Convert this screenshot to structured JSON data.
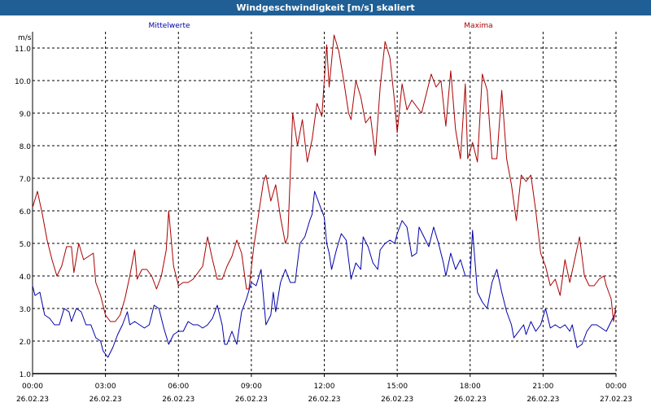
{
  "window": {
    "title": "Windgeschwindigkeit [m/s] skaliert"
  },
  "chart_data": {
    "type": "line",
    "title": "Windgeschwindigkeit [m/s] skaliert",
    "ylabel": "m/s",
    "ylim": [
      1.0,
      11.5
    ],
    "yticks": [
      "1.0",
      "2.0",
      "3.0",
      "4.0",
      "5.0",
      "6.0",
      "7.0",
      "8.0",
      "9.0",
      "10.0",
      "11.0"
    ],
    "xlim": [
      0,
      24
    ],
    "xticks": [
      {
        "time": "00:00",
        "date": "26.02.23"
      },
      {
        "time": "03:00",
        "date": "26.02.23"
      },
      {
        "time": "06:00",
        "date": "26.02.23"
      },
      {
        "time": "09:00",
        "date": "26.02.23"
      },
      {
        "time": "12:00",
        "date": "26.02.23"
      },
      {
        "time": "15:00",
        "date": "26.02.23"
      },
      {
        "time": "18:00",
        "date": "26.02.23"
      },
      {
        "time": "21:00",
        "date": "26.02.23"
      },
      {
        "time": "00:00",
        "date": "27.02.23"
      }
    ],
    "grid": true,
    "colors": {
      "mittel": "#0000aa",
      "maxima": "#aa0000",
      "grid": "#000000",
      "titlebar": "#1f5f95"
    },
    "series": [
      {
        "name": "Mittelwerte",
        "values": [
          [
            0.0,
            3.7
          ],
          [
            0.1,
            3.4
          ],
          [
            0.3,
            3.5
          ],
          [
            0.5,
            2.8
          ],
          [
            0.7,
            2.7
          ],
          [
            0.9,
            2.5
          ],
          [
            1.1,
            2.5
          ],
          [
            1.3,
            3.0
          ],
          [
            1.5,
            2.9
          ],
          [
            1.6,
            2.6
          ],
          [
            1.8,
            3.0
          ],
          [
            2.0,
            2.9
          ],
          [
            2.2,
            2.5
          ],
          [
            2.4,
            2.5
          ],
          [
            2.6,
            2.1
          ],
          [
            2.8,
            2.0
          ],
          [
            2.9,
            1.7
          ],
          [
            3.1,
            1.5
          ],
          [
            3.3,
            1.8
          ],
          [
            3.5,
            2.2
          ],
          [
            3.7,
            2.5
          ],
          [
            3.9,
            2.9
          ],
          [
            4.0,
            2.5
          ],
          [
            4.2,
            2.6
          ],
          [
            4.4,
            2.5
          ],
          [
            4.6,
            2.4
          ],
          [
            4.8,
            2.5
          ],
          [
            5.0,
            3.1
          ],
          [
            5.2,
            3.0
          ],
          [
            5.4,
            2.4
          ],
          [
            5.6,
            1.9
          ],
          [
            5.8,
            2.2
          ],
          [
            6.0,
            2.3
          ],
          [
            6.2,
            2.3
          ],
          [
            6.4,
            2.6
          ],
          [
            6.6,
            2.5
          ],
          [
            6.8,
            2.5
          ],
          [
            7.0,
            2.4
          ],
          [
            7.2,
            2.5
          ],
          [
            7.4,
            2.7
          ],
          [
            7.6,
            3.1
          ],
          [
            7.8,
            2.5
          ],
          [
            7.9,
            1.9
          ],
          [
            8.0,
            1.9
          ],
          [
            8.2,
            2.3
          ],
          [
            8.4,
            1.9
          ],
          [
            8.6,
            2.9
          ],
          [
            8.8,
            3.3
          ],
          [
            9.0,
            3.8
          ],
          [
            9.2,
            3.7
          ],
          [
            9.4,
            4.2
          ],
          [
            9.6,
            2.5
          ],
          [
            9.8,
            2.8
          ],
          [
            9.9,
            3.5
          ],
          [
            10.0,
            2.9
          ],
          [
            10.2,
            3.8
          ],
          [
            10.4,
            4.2
          ],
          [
            10.6,
            3.8
          ],
          [
            10.8,
            3.8
          ],
          [
            10.9,
            4.4
          ],
          [
            11.0,
            5.0
          ],
          [
            11.2,
            5.2
          ],
          [
            11.4,
            5.7
          ],
          [
            11.5,
            5.9
          ],
          [
            11.6,
            6.6
          ],
          [
            11.8,
            6.2
          ],
          [
            12.0,
            5.8
          ],
          [
            12.1,
            5.0
          ],
          [
            12.2,
            4.7
          ],
          [
            12.3,
            4.2
          ],
          [
            12.5,
            4.8
          ],
          [
            12.7,
            5.3
          ],
          [
            12.9,
            5.1
          ],
          [
            13.0,
            4.5
          ],
          [
            13.1,
            3.9
          ],
          [
            13.3,
            4.4
          ],
          [
            13.5,
            4.2
          ],
          [
            13.6,
            5.2
          ],
          [
            13.8,
            4.9
          ],
          [
            14.0,
            4.4
          ],
          [
            14.2,
            4.2
          ],
          [
            14.3,
            4.8
          ],
          [
            14.5,
            5.0
          ],
          [
            14.7,
            5.1
          ],
          [
            14.9,
            5.0
          ],
          [
            15.0,
            5.3
          ],
          [
            15.2,
            5.7
          ],
          [
            15.4,
            5.5
          ],
          [
            15.6,
            4.6
          ],
          [
            15.8,
            4.7
          ],
          [
            15.9,
            5.5
          ],
          [
            16.1,
            5.2
          ],
          [
            16.3,
            4.9
          ],
          [
            16.5,
            5.5
          ],
          [
            16.7,
            5.0
          ],
          [
            16.9,
            4.4
          ],
          [
            17.0,
            4.0
          ],
          [
            17.2,
            4.7
          ],
          [
            17.4,
            4.2
          ],
          [
            17.6,
            4.5
          ],
          [
            17.8,
            4.0
          ],
          [
            18.0,
            4.0
          ],
          [
            18.1,
            5.4
          ],
          [
            18.3,
            3.5
          ],
          [
            18.5,
            3.2
          ],
          [
            18.7,
            3.0
          ],
          [
            18.9,
            3.8
          ],
          [
            19.1,
            4.2
          ],
          [
            19.3,
            3.5
          ],
          [
            19.5,
            2.9
          ],
          [
            19.7,
            2.5
          ],
          [
            19.8,
            2.1
          ],
          [
            20.0,
            2.3
          ],
          [
            20.2,
            2.5
          ],
          [
            20.3,
            2.2
          ],
          [
            20.5,
            2.6
          ],
          [
            20.7,
            2.3
          ],
          [
            20.9,
            2.5
          ],
          [
            21.1,
            3.0
          ],
          [
            21.3,
            2.4
          ],
          [
            21.5,
            2.5
          ],
          [
            21.7,
            2.4
          ],
          [
            21.9,
            2.5
          ],
          [
            22.1,
            2.3
          ],
          [
            22.2,
            2.5
          ],
          [
            22.4,
            1.8
          ],
          [
            22.6,
            1.9
          ],
          [
            22.8,
            2.3
          ],
          [
            23.0,
            2.5
          ],
          [
            23.2,
            2.5
          ],
          [
            23.4,
            2.4
          ],
          [
            23.6,
            2.3
          ],
          [
            23.8,
            2.6
          ],
          [
            24.0,
            2.9
          ]
        ]
      },
      {
        "name": "Maxima",
        "values": [
          [
            0.0,
            6.1
          ],
          [
            0.2,
            6.6
          ],
          [
            0.4,
            5.9
          ],
          [
            0.6,
            5.1
          ],
          [
            0.8,
            4.5
          ],
          [
            1.0,
            4.0
          ],
          [
            1.2,
            4.3
          ],
          [
            1.4,
            4.9
          ],
          [
            1.6,
            4.9
          ],
          [
            1.7,
            4.1
          ],
          [
            1.9,
            5.0
          ],
          [
            2.1,
            4.5
          ],
          [
            2.3,
            4.6
          ],
          [
            2.5,
            4.7
          ],
          [
            2.6,
            3.8
          ],
          [
            2.8,
            3.4
          ],
          [
            3.0,
            2.8
          ],
          [
            3.2,
            2.6
          ],
          [
            3.4,
            2.6
          ],
          [
            3.6,
            2.8
          ],
          [
            3.8,
            3.3
          ],
          [
            4.0,
            4.0
          ],
          [
            4.2,
            4.8
          ],
          [
            4.3,
            3.9
          ],
          [
            4.5,
            4.2
          ],
          [
            4.7,
            4.2
          ],
          [
            4.9,
            4.0
          ],
          [
            5.1,
            3.6
          ],
          [
            5.3,
            4.0
          ],
          [
            5.5,
            4.8
          ],
          [
            5.6,
            6.0
          ],
          [
            5.8,
            4.3
          ],
          [
            6.0,
            3.7
          ],
          [
            6.2,
            3.8
          ],
          [
            6.4,
            3.8
          ],
          [
            6.6,
            3.9
          ],
          [
            6.8,
            4.1
          ],
          [
            7.0,
            4.3
          ],
          [
            7.2,
            5.2
          ],
          [
            7.4,
            4.5
          ],
          [
            7.6,
            3.9
          ],
          [
            7.8,
            3.9
          ],
          [
            8.0,
            4.3
          ],
          [
            8.2,
            4.6
          ],
          [
            8.4,
            5.1
          ],
          [
            8.6,
            4.7
          ],
          [
            8.8,
            3.6
          ],
          [
            8.9,
            3.6
          ],
          [
            9.1,
            4.9
          ],
          [
            9.3,
            5.9
          ],
          [
            9.5,
            6.9
          ],
          [
            9.6,
            7.1
          ],
          [
            9.8,
            6.3
          ],
          [
            10.0,
            6.8
          ],
          [
            10.2,
            5.8
          ],
          [
            10.4,
            5.0
          ],
          [
            10.5,
            5.2
          ],
          [
            10.7,
            9.0
          ],
          [
            10.9,
            8.0
          ],
          [
            11.1,
            8.8
          ],
          [
            11.3,
            7.5
          ],
          [
            11.5,
            8.2
          ],
          [
            11.7,
            9.3
          ],
          [
            11.9,
            8.9
          ],
          [
            12.1,
            11.1
          ],
          [
            12.2,
            9.8
          ],
          [
            12.4,
            11.4
          ],
          [
            12.6,
            10.9
          ],
          [
            12.8,
            10.0
          ],
          [
            13.0,
            9.0
          ],
          [
            13.1,
            8.8
          ],
          [
            13.3,
            10.0
          ],
          [
            13.5,
            9.5
          ],
          [
            13.7,
            8.7
          ],
          [
            13.9,
            8.9
          ],
          [
            14.1,
            7.7
          ],
          [
            14.3,
            9.8
          ],
          [
            14.5,
            11.2
          ],
          [
            14.7,
            10.7
          ],
          [
            14.9,
            9.3
          ],
          [
            15.0,
            8.4
          ],
          [
            15.2,
            9.9
          ],
          [
            15.4,
            9.1
          ],
          [
            15.6,
            9.4
          ],
          [
            15.8,
            9.2
          ],
          [
            16.0,
            9.0
          ],
          [
            16.2,
            9.6
          ],
          [
            16.4,
            10.2
          ],
          [
            16.6,
            9.8
          ],
          [
            16.8,
            10.0
          ],
          [
            17.0,
            8.6
          ],
          [
            17.2,
            10.3
          ],
          [
            17.4,
            8.5
          ],
          [
            17.6,
            7.6
          ],
          [
            17.8,
            9.9
          ],
          [
            17.9,
            7.6
          ],
          [
            18.1,
            8.1
          ],
          [
            18.3,
            7.5
          ],
          [
            18.5,
            10.2
          ],
          [
            18.7,
            9.7
          ],
          [
            18.9,
            7.6
          ],
          [
            19.1,
            7.6
          ],
          [
            19.3,
            9.7
          ],
          [
            19.5,
            7.6
          ],
          [
            19.7,
            6.8
          ],
          [
            19.9,
            5.7
          ],
          [
            20.1,
            7.1
          ],
          [
            20.3,
            6.9
          ],
          [
            20.5,
            7.1
          ],
          [
            20.7,
            6.0
          ],
          [
            20.9,
            4.7
          ],
          [
            21.1,
            4.3
          ],
          [
            21.3,
            3.7
          ],
          [
            21.5,
            3.9
          ],
          [
            21.7,
            3.4
          ],
          [
            21.9,
            4.5
          ],
          [
            22.1,
            3.8
          ],
          [
            22.3,
            4.5
          ],
          [
            22.5,
            5.2
          ],
          [
            22.7,
            4.0
          ],
          [
            22.9,
            3.7
          ],
          [
            23.1,
            3.7
          ],
          [
            23.3,
            3.9
          ],
          [
            23.5,
            4.0
          ],
          [
            23.6,
            3.7
          ],
          [
            23.8,
            3.3
          ],
          [
            23.9,
            2.6
          ],
          [
            24.0,
            3.1
          ]
        ]
      }
    ],
    "legend": [
      {
        "label": "Mittelwerte",
        "position": "top-left"
      },
      {
        "label": "Maxima",
        "position": "top-right"
      }
    ]
  }
}
